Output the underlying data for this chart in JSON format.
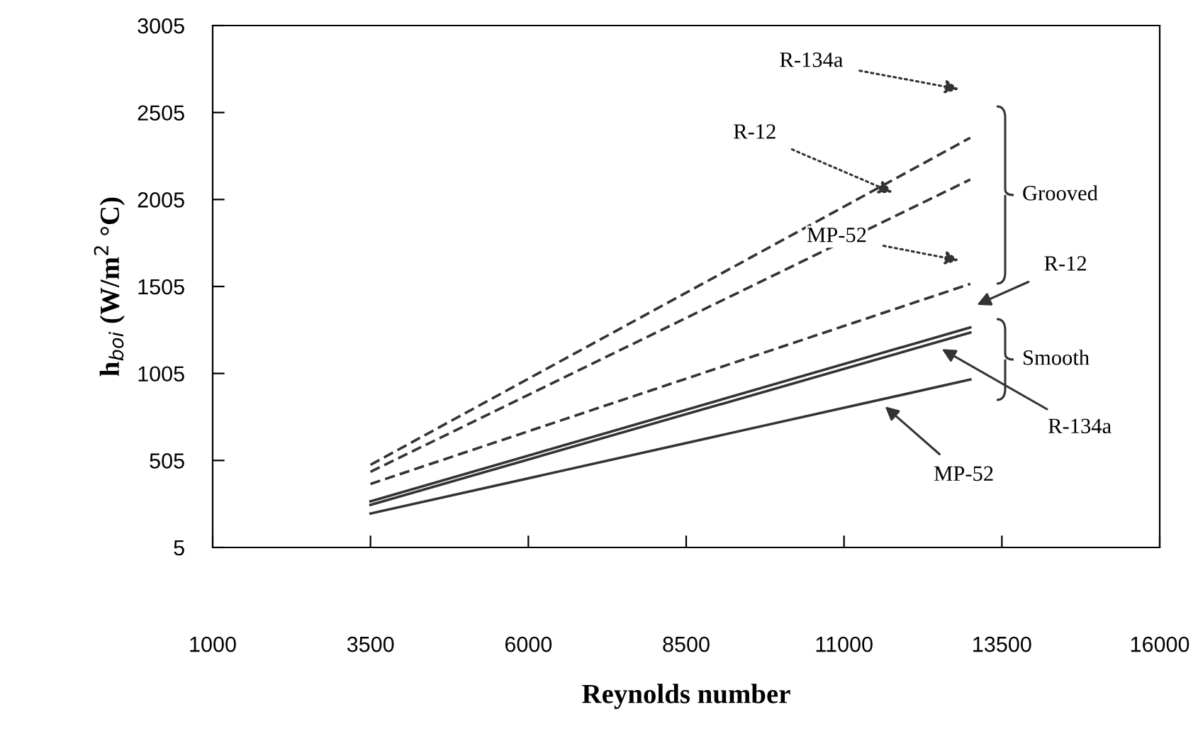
{
  "chart_data": {
    "type": "line",
    "xlabel": "Reynolds number",
    "ylabel": "h$_{boi}$ (W/m$^{2}$ °C)",
    "xlim": [
      1000,
      16000
    ],
    "xticks": [
      1000,
      3500,
      6000,
      8500,
      11000,
      13500,
      16000
    ],
    "ylim": [
      5,
      3005
    ],
    "yticks": [
      5,
      505,
      1005,
      1505,
      2005,
      2505,
      3005
    ],
    "grid": false,
    "legend": false,
    "marker": "none",
    "series": [
      {
        "color": "#333333",
        "line_style": "dashed",
        "values": [
          480,
          2360
        ]
      },
      {
        "color": "#333333",
        "line_style": "dashed",
        "values": [
          440,
          2120
        ]
      },
      {
        "color": "#333333",
        "line_style": "dashed",
        "values": [
          370,
          1520
        ]
      },
      {
        "color": "#333333",
        "line_style": "solid",
        "values": [
          270,
          1270
        ]
      },
      {
        "color": "#333333",
        "line_style": "solid",
        "values": [
          250,
          1240
        ]
      },
      {
        "color": "#333333",
        "line_style": "solid",
        "values": [
          200,
          970
        ]
      }
    ],
    "x": [
      3500,
      13000
    ],
    "annotations": [
      "R-134a",
      "R-12",
      "MP-52",
      "R-12",
      "R-134a",
      "MP-52",
      "Grooved",
      "Smooth"
    ]
  }
}
